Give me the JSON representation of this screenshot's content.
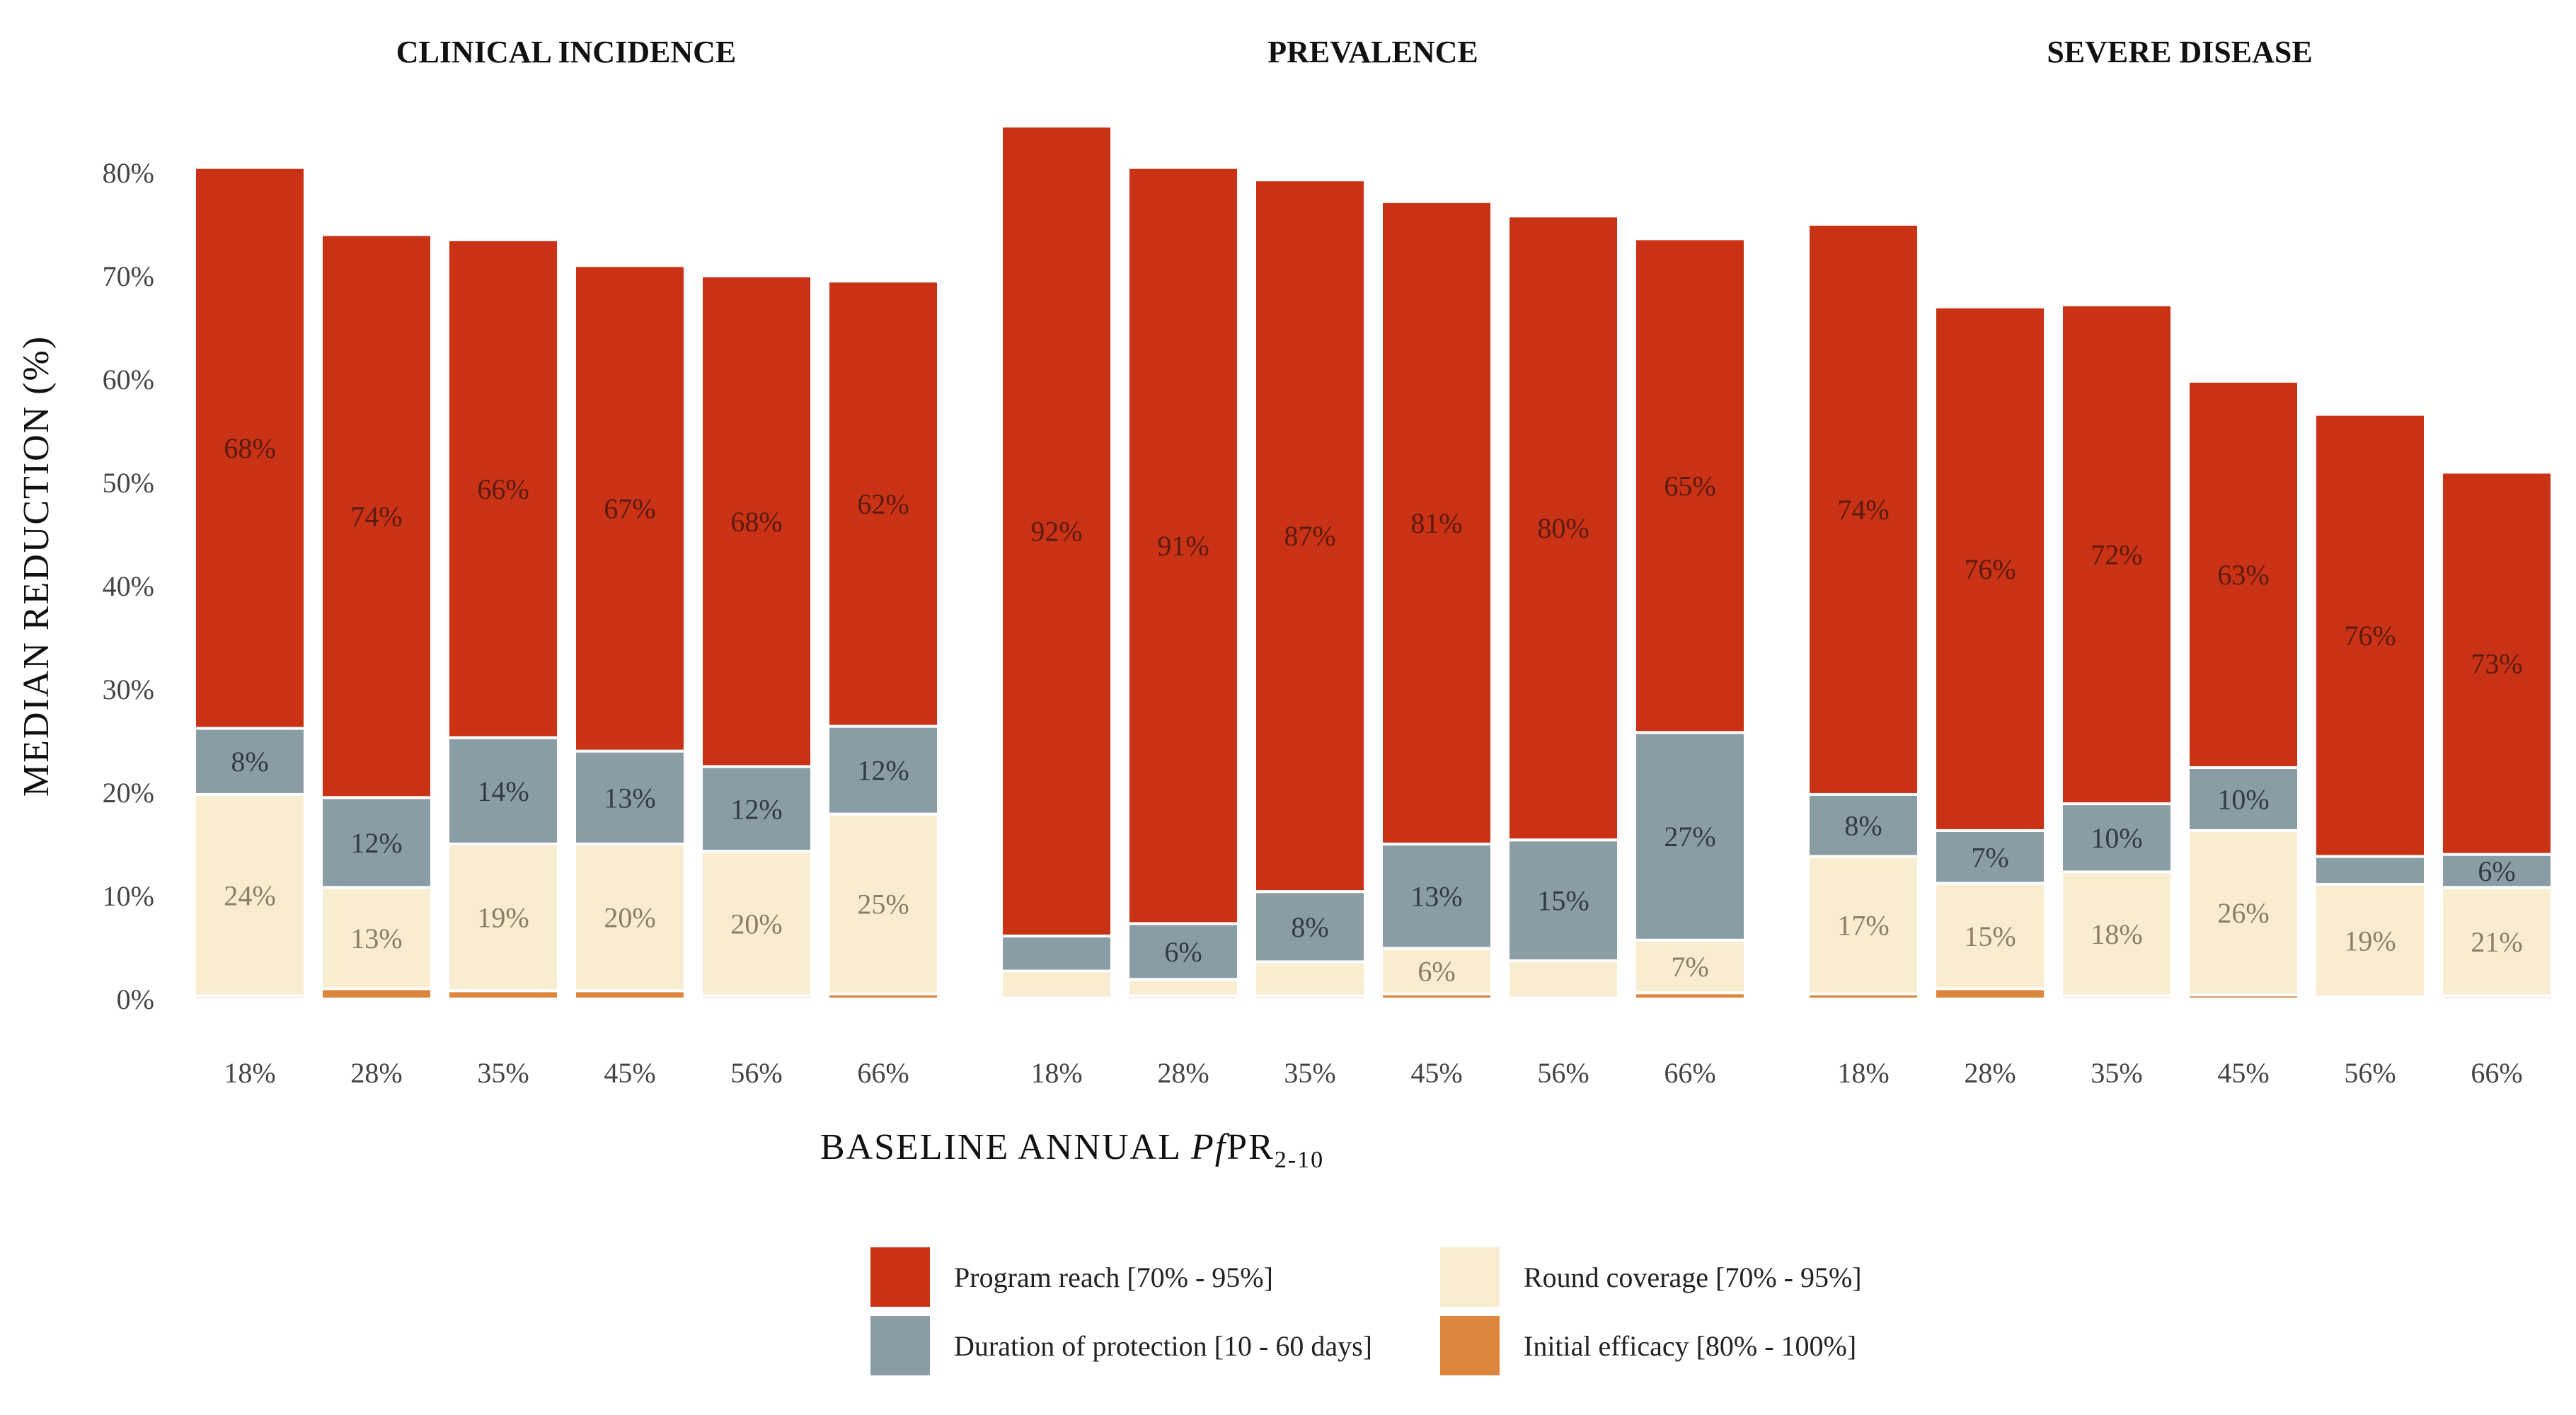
{
  "chart_data": {
    "type": "bar",
    "stacked": true,
    "panels": [
      {
        "title": "CLINICAL INCIDENCE",
        "categories": [
          "18%",
          "28%",
          "35%",
          "45%",
          "56%",
          "66%"
        ],
        "totals": [
          80.5,
          74,
          73.5,
          71,
          70,
          69.5
        ],
        "stack": {
          "initial_efficacy": [
            0.3,
            1.0,
            0.8,
            0.8,
            0.3,
            0.5
          ],
          "round_coverage": [
            19.5,
            9.8,
            14.2,
            14.2,
            14.0,
            17.4
          ],
          "duration_of_protection": [
            6.4,
            8.7,
            10.3,
            9.0,
            8.2,
            8.5
          ],
          "program_reach": [
            54.3,
            54.5,
            48.2,
            47.0,
            47.5,
            43.1
          ]
        },
        "labels": {
          "round_coverage": [
            "24%",
            "13%",
            "19%",
            "20%",
            "20%",
            "25%"
          ],
          "duration_of_protection": [
            "8%",
            "12%",
            "14%",
            "13%",
            "12%",
            "12%"
          ],
          "program_reach": [
            "68%",
            "74%",
            "66%",
            "67%",
            "68%",
            "62%"
          ]
        }
      },
      {
        "title": "PREVALENCE",
        "categories": [
          "18%",
          "28%",
          "35%",
          "45%",
          "56%",
          "66%"
        ],
        "totals": [
          84.5,
          80.5,
          79.3,
          77.2,
          75.8,
          73.6
        ],
        "stack": {
          "initial_efficacy": [
            0.1,
            0.3,
            0.3,
            0.5,
            0.1,
            0.6
          ],
          "round_coverage": [
            2.6,
            1.6,
            3.3,
            4.4,
            3.6,
            5.1
          ],
          "duration_of_protection": [
            3.4,
            5.4,
            6.8,
            10.1,
            11.7,
            20.1
          ],
          "program_reach": [
            78.4,
            73.2,
            68.9,
            62.2,
            60.4,
            47.8
          ]
        },
        "labels": {
          "round_coverage": [
            "",
            "",
            "",
            "6%",
            "",
            "7%"
          ],
          "duration_of_protection": [
            "",
            "6%",
            "8%",
            "13%",
            "15%",
            "27%"
          ],
          "program_reach": [
            "92%",
            "91%",
            "87%",
            "81%",
            "80%",
            "65%"
          ]
        }
      },
      {
        "title": "SEVERE DISEASE",
        "categories": [
          "18%",
          "28%",
          "35%",
          "45%",
          "56%",
          "66%"
        ],
        "totals": [
          75,
          67,
          67.2,
          59.8,
          56.6,
          51
        ],
        "stack": {
          "initial_efficacy": [
            0.5,
            1.0,
            0.3,
            0.4,
            0.2,
            0.3
          ],
          "round_coverage": [
            13.3,
            10.2,
            12.0,
            15.9,
            10.9,
            10.5
          ],
          "duration_of_protection": [
            6.0,
            5.1,
            6.6,
            6.1,
            2.7,
            3.2
          ],
          "program_reach": [
            55.2,
            50.7,
            48.3,
            37.4,
            42.8,
            37.0
          ]
        },
        "labels": {
          "round_coverage": [
            "17%",
            "15%",
            "18%",
            "26%",
            "19%",
            "21%"
          ],
          "duration_of_protection": [
            "8%",
            "7%",
            "10%",
            "10%",
            "",
            "6%"
          ],
          "program_reach": [
            "74%",
            "76%",
            "72%",
            "63%",
            "76%",
            "73%"
          ]
        }
      }
    ],
    "y_ticks": [
      "0%",
      "10%",
      "20%",
      "30%",
      "40%",
      "50%",
      "60%",
      "70%",
      "80%"
    ],
    "ylim": [
      0,
      85
    ],
    "ylabel": "MEDIAN REDUCTION (%)",
    "xlabel": {
      "prefix": "BASELINE ANNUAL ",
      "italic": "Pf",
      "main": "PR",
      "subscript": "2-10"
    },
    "legend": {
      "position": "bottom",
      "items": [
        {
          "key": "program_reach",
          "label": "Program reach [70% - 95%]",
          "color": "#c93214"
        },
        {
          "key": "round_coverage",
          "label": "Round coverage [70% - 95%]",
          "color": "#f8edd0"
        },
        {
          "key": "duration_of_protection",
          "label": "Duration of protection [10 - 60 days]",
          "color": "#8a9da4"
        },
        {
          "key": "initial_efficacy",
          "label": "Initial efficacy [80% - 100%]",
          "color": "#dc863b"
        }
      ]
    },
    "label_colors": {
      "program_reach": "#5a1a10",
      "round_coverage": "#8a7e66",
      "duration_of_protection": "#2f3d42"
    },
    "grid": false
  }
}
